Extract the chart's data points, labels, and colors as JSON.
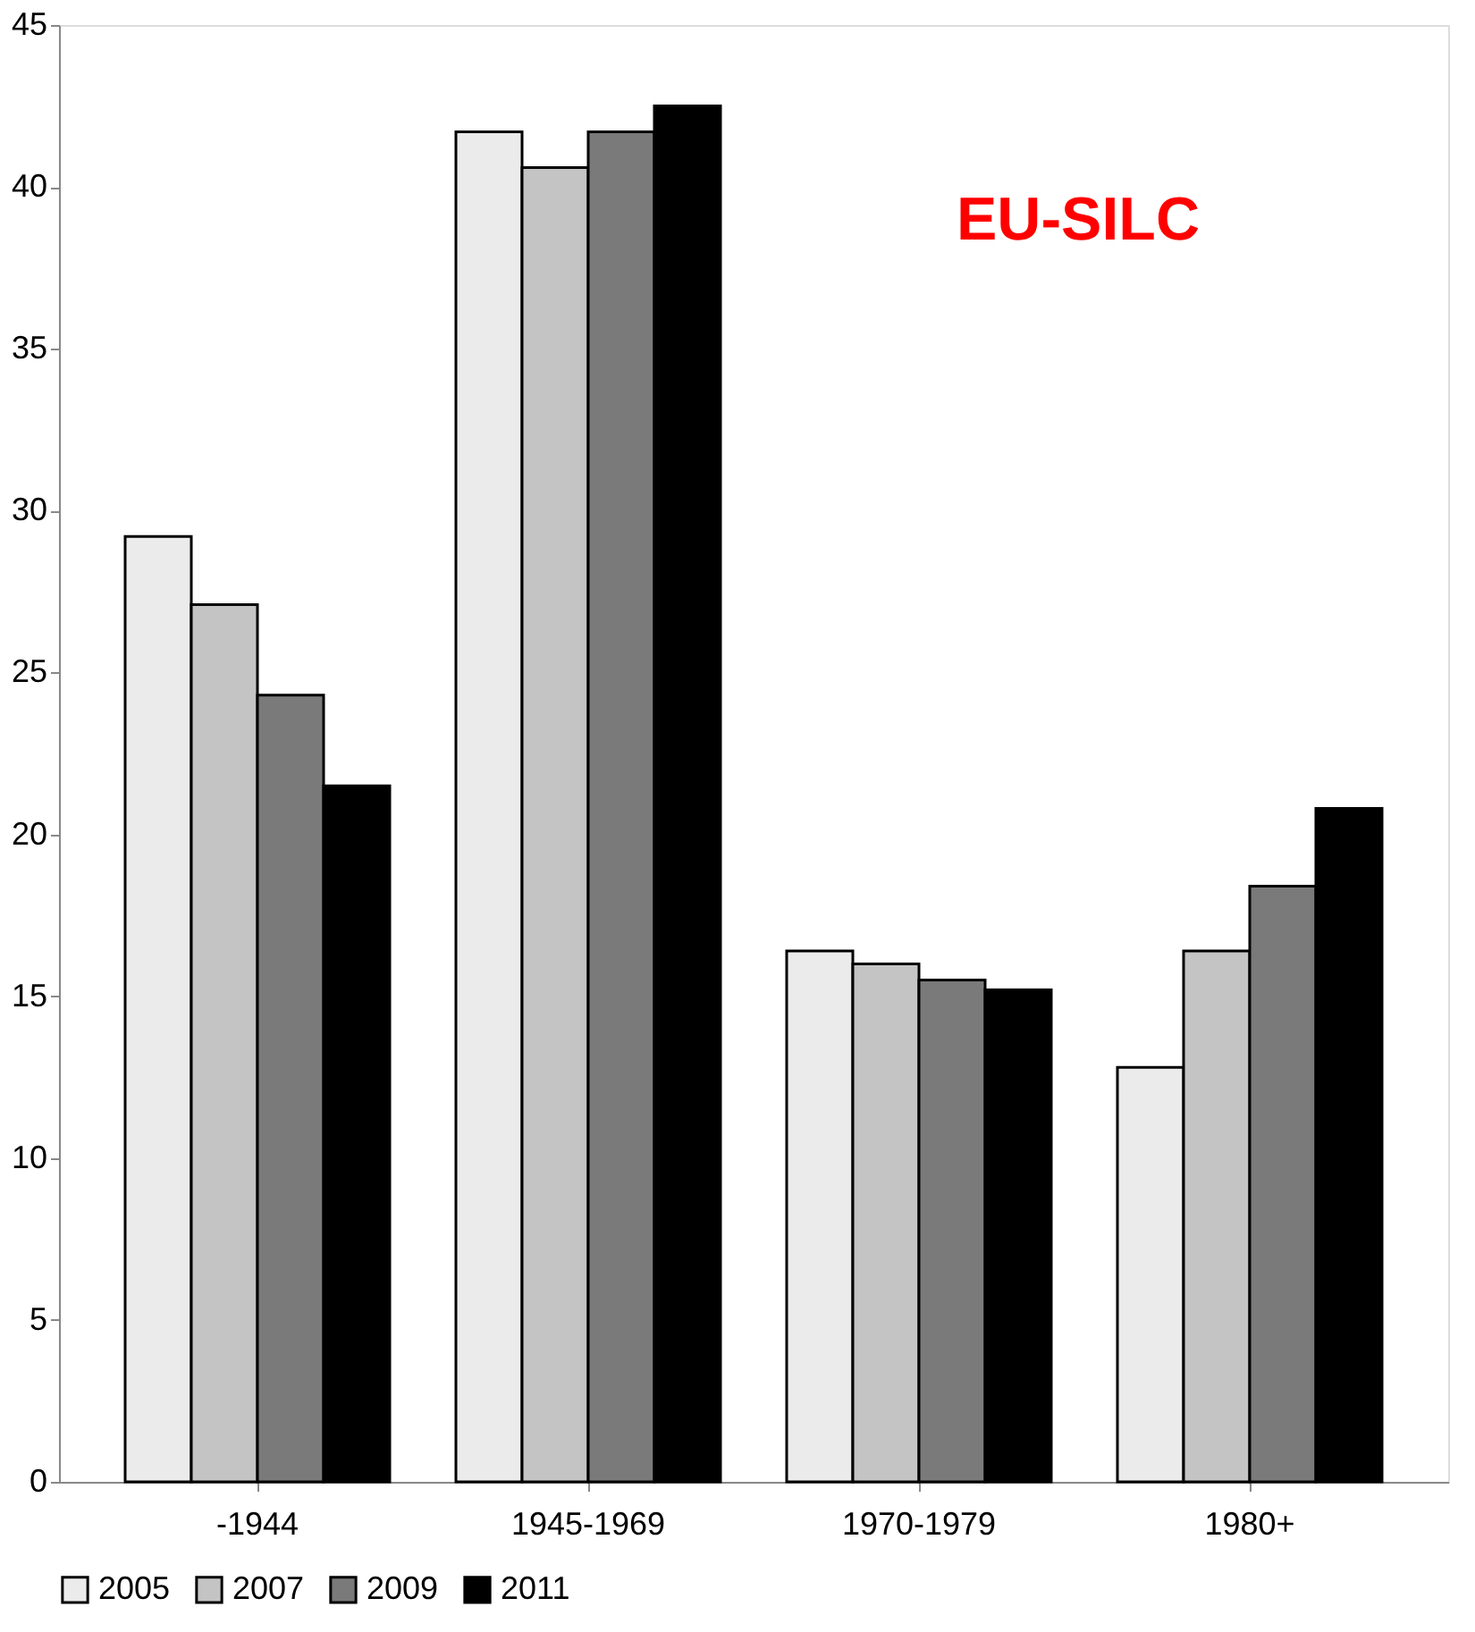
{
  "chart_data": {
    "type": "bar",
    "categories": [
      "-1944",
      "1945-1969",
      "1970-1979",
      "1980+"
    ],
    "series": [
      {
        "name": "2005",
        "color": "#ebebeb",
        "values": [
          29.2,
          41.7,
          16.4,
          12.8
        ]
      },
      {
        "name": "2007",
        "color": "#c4c4c4",
        "values": [
          27.1,
          40.6,
          16.0,
          16.4
        ]
      },
      {
        "name": "2009",
        "color": "#7a7a7a",
        "values": [
          24.3,
          41.7,
          15.5,
          18.4
        ]
      },
      {
        "name": "2011",
        "color": "#000000",
        "values": [
          21.5,
          42.5,
          15.2,
          20.8
        ]
      }
    ],
    "ylim": [
      0,
      45
    ],
    "yticks": [
      0,
      5,
      10,
      15,
      20,
      25,
      30,
      35,
      40,
      45
    ],
    "annotations": [
      "EU-SILC"
    ],
    "grid": false,
    "legend": "bottom"
  }
}
